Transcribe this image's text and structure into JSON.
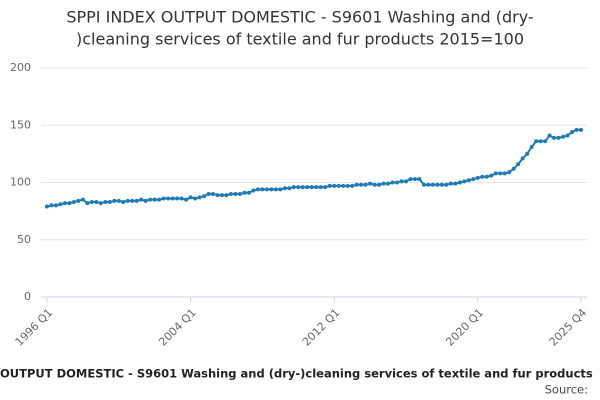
{
  "chart_data": {
    "type": "line",
    "title": [
      "SPPI INDEX OUTPUT DOMESTIC - S9601 Washing and (dry-",
      ")cleaning services of textile and fur products 2015=100"
    ],
    "footer": "OUTPUT DOMESTIC - S9601 Washing and (dry-)cleaning services of textile and fur products",
    "source": "Source:",
    "categories": [
      "1996 Q1",
      null,
      null,
      null,
      null,
      null,
      null,
      null,
      null,
      null,
      null,
      null,
      null,
      null,
      null,
      null,
      null,
      null,
      null,
      null,
      null,
      null,
      null,
      null,
      null,
      null,
      null,
      null,
      null,
      null,
      null,
      null,
      "2004 Q1",
      null,
      null,
      null,
      null,
      null,
      null,
      null,
      null,
      null,
      null,
      null,
      null,
      null,
      null,
      null,
      null,
      null,
      null,
      null,
      null,
      null,
      null,
      null,
      null,
      null,
      null,
      null,
      null,
      null,
      null,
      null,
      "2012 Q1",
      null,
      null,
      null,
      null,
      null,
      null,
      null,
      null,
      null,
      null,
      null,
      null,
      null,
      null,
      null,
      null,
      null,
      null,
      null,
      null,
      null,
      null,
      null,
      null,
      null,
      null,
      null,
      null,
      null,
      null,
      null,
      "2020 Q1",
      null,
      null,
      null,
      null,
      null,
      null,
      null,
      null,
      null,
      null,
      null,
      null,
      null,
      null,
      null,
      null,
      null,
      null,
      null,
      null,
      null,
      null,
      "2025 Q4"
    ],
    "series": [
      {
        "name": "SPPI",
        "color": "#1f7bb6",
        "values": [
          79,
          80,
          80,
          81,
          82,
          82,
          83,
          84,
          85,
          82,
          83,
          83,
          82,
          83,
          83,
          84,
          84,
          83,
          84,
          84,
          84,
          85,
          84,
          85,
          85,
          85,
          86,
          86,
          86,
          86,
          86,
          85,
          87,
          86,
          87,
          88,
          90,
          90,
          89,
          89,
          89,
          90,
          90,
          90,
          91,
          91,
          93,
          94,
          94,
          94,
          94,
          94,
          94,
          95,
          95,
          96,
          96,
          96,
          96,
          96,
          96,
          96,
          96,
          97,
          97,
          97,
          97,
          97,
          97,
          98,
          98,
          98,
          99,
          98,
          98,
          99,
          99,
          100,
          100,
          101,
          101,
          103,
          103,
          103,
          98,
          98,
          98,
          98,
          98,
          98,
          99,
          99,
          100,
          101,
          102,
          103,
          104,
          105,
          105,
          106,
          108,
          108,
          108,
          109,
          112,
          116,
          121,
          125,
          131,
          136,
          136,
          136,
          141,
          139,
          139,
          140,
          141,
          144,
          146,
          146
        ]
      }
    ],
    "ylim": [
      0,
      200
    ],
    "yticks": [
      0,
      50,
      100,
      150,
      200
    ],
    "grid": true
  }
}
